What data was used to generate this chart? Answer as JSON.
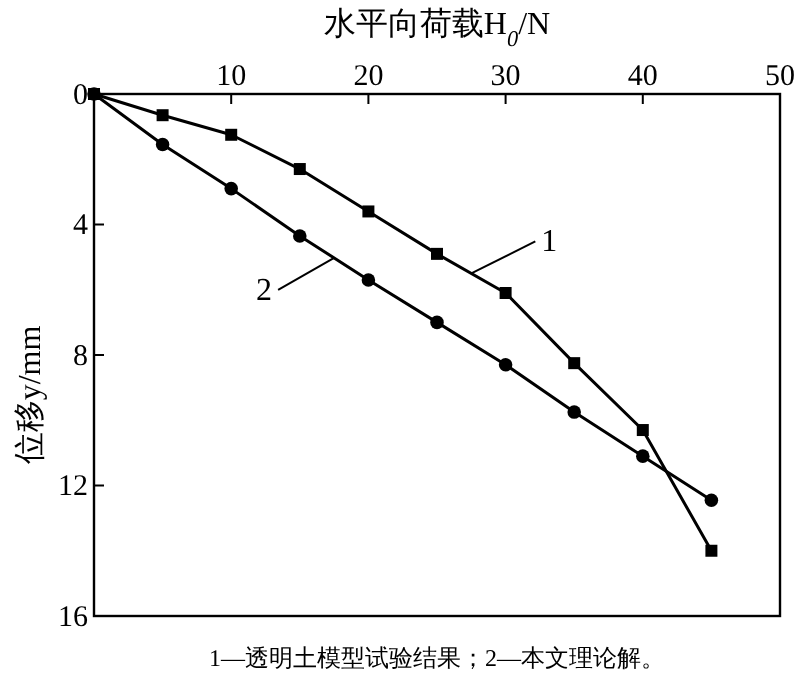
{
  "chart_data": {
    "type": "line",
    "xlabel": "水平向荷载H$_{0}$/N",
    "ylabel": "位移y/mm",
    "x": [
      0,
      5,
      10,
      15,
      20,
      25,
      30,
      35,
      40,
      45
    ],
    "series": [
      {
        "name": "1",
        "color": "#000000",
        "marker": "square",
        "values": [
          0,
          0.65,
          1.25,
          2.3,
          3.6,
          4.9,
          6.1,
          8.25,
          10.3,
          14.0
        ]
      },
      {
        "name": "2",
        "color": "#000000",
        "marker": "circle",
        "values": [
          0,
          1.55,
          2.9,
          4.35,
          5.7,
          7.0,
          8.3,
          9.75,
          11.1,
          12.45
        ]
      }
    ],
    "xlim": [
      0,
      50
    ],
    "xticks": [
      {
        "value": 0,
        "label": null
      },
      10,
      20,
      30,
      40,
      50
    ],
    "ylim": [
      16,
      0
    ],
    "yticks": [
      0,
      4,
      8,
      12,
      16
    ],
    "line_style": "solid",
    "grid": false,
    "annotations": [
      "1—透明土模型试验结果；2—本文理论解。"
    ]
  }
}
